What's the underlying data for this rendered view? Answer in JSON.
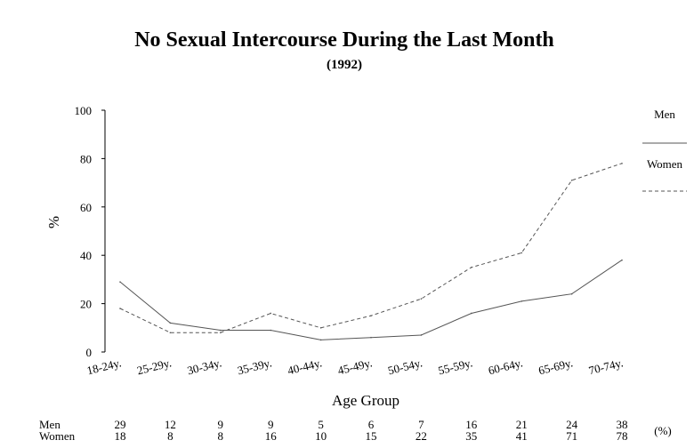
{
  "chart_data": {
    "type": "line",
    "title": "No Sexual Intercourse During the Last Month",
    "subtitle": "(1992)",
    "xlabel": "Age Group",
    "ylabel": "%",
    "ylim": [
      0,
      100
    ],
    "yticks": [
      0,
      20,
      40,
      60,
      80,
      100
    ],
    "categories": [
      "18-24y.",
      "25-29y.",
      "30-34y.",
      "35-39y.",
      "40-44y.",
      "45-49y.",
      "50-54y.",
      "55-59y.",
      "60-64y.",
      "65-69y.",
      "70-74y."
    ],
    "series": [
      {
        "name": "Men",
        "style": "solid",
        "color": "#555555",
        "values": [
          29,
          12,
          9,
          9,
          5,
          6,
          7,
          16,
          21,
          24,
          38
        ]
      },
      {
        "name": "Women",
        "style": "dashed",
        "color": "#555555",
        "values": [
          18,
          8,
          8,
          16,
          10,
          15,
          22,
          35,
          41,
          71,
          78
        ]
      }
    ],
    "legend_position": "right",
    "grid": false,
    "table_unit": "(%)"
  }
}
